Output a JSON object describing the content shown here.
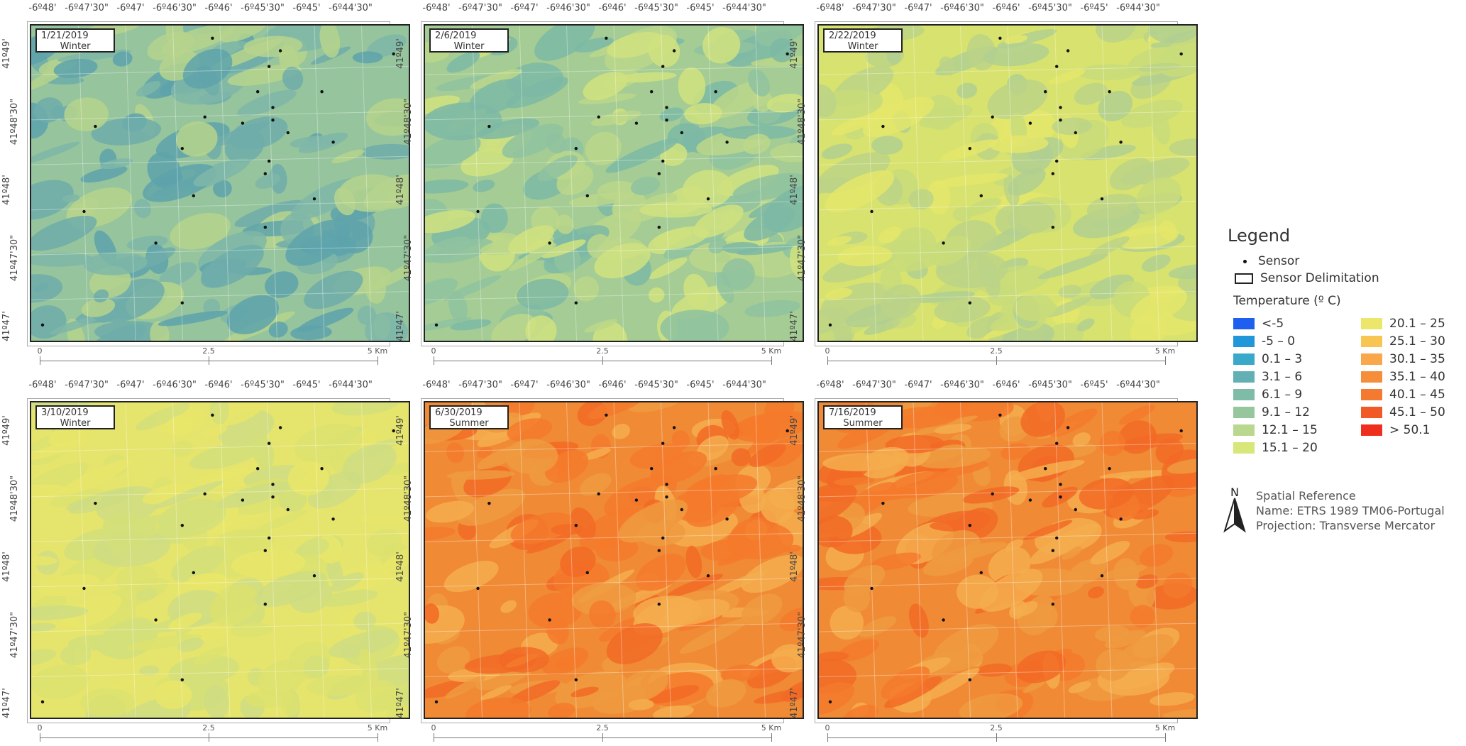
{
  "lon_labels": [
    "-6º48'",
    "-6º47'30\"",
    "-6º47'",
    "-6º46'30\"",
    "-6º46'",
    "-6º45'30\"",
    "-6º45'",
    "-6º44'30\""
  ],
  "lat_labels": [
    "41º49'",
    "41º48'30\"",
    "41º48'",
    "41º47'30\"",
    "41º47'"
  ],
  "scale_labels": [
    "0",
    "2.5",
    "5 Km"
  ],
  "panels": [
    {
      "date": "1/21/2019",
      "season": "Winter",
      "palette": "blueGreen"
    },
    {
      "date": "2/6/2019",
      "season": "Winter",
      "palette": "green"
    },
    {
      "date": "2/22/2019",
      "season": "Winter",
      "palette": "lime"
    },
    {
      "date": "3/10/2019",
      "season": "Winter",
      "palette": "yellow"
    },
    {
      "date": "6/30/2019",
      "season": "Summer",
      "palette": "orange"
    },
    {
      "date": "7/16/2019",
      "season": "Summer",
      "palette": "orange"
    }
  ],
  "palettes": {
    "blueGreen": [
      "#95c49d",
      "#7fb7a8",
      "#6fadaa",
      "#5ea3ab",
      "#b6d38c"
    ],
    "green": [
      "#a4cc94",
      "#8fc2a0",
      "#7db8a4",
      "#bcd789",
      "#d0e27f"
    ],
    "lime": [
      "#d8e26f",
      "#c9dc7a",
      "#bcd487",
      "#e4e66a",
      "#b0cf90"
    ],
    "yellow": [
      "#e5e46c",
      "#dde26f",
      "#d3df7a",
      "#e9e66a",
      "#cfdd82"
    ],
    "orange": [
      "#f08a35",
      "#f47a2c",
      "#ee9a40",
      "#f26a26",
      "#f5ad4e"
    ]
  },
  "legend": {
    "title": "Legend",
    "sensor_label": "Sensor",
    "delimitation_label": "Sensor Delimitation",
    "temperature_label": "Temperature (º C)",
    "classes_left": [
      {
        "label": "<-5",
        "color": "#1f5ff0"
      },
      {
        "label": "-5 – 0",
        "color": "#2196d8"
      },
      {
        "label": "0.1 – 3",
        "color": "#3aa9c9"
      },
      {
        "label": "3.1 – 6",
        "color": "#62b0b4"
      },
      {
        "label": "6.1 – 9",
        "color": "#7ebca8"
      },
      {
        "label": "9.1 – 12",
        "color": "#96c79c"
      },
      {
        "label": "12.1 – 15",
        "color": "#bad790"
      },
      {
        "label": "15.1 – 20",
        "color": "#d7e77a"
      }
    ],
    "classes_right": [
      {
        "label": "20.1 – 25",
        "color": "#ece76b"
      },
      {
        "label": "25.1 – 30",
        "color": "#f8c552"
      },
      {
        "label": "30.1 – 35",
        "color": "#f8a84a"
      },
      {
        "label": "35.1 – 40",
        "color": "#f58d3a"
      },
      {
        "label": "40.1 – 45",
        "color": "#f37a30"
      },
      {
        "label": "45.1 – 50",
        "color": "#f15a26"
      },
      {
        "label": "> 50.1",
        "color": "#ef2f1e"
      }
    ],
    "north_label": "N",
    "spatial_reference": {
      "heading": "Spatial Reference",
      "name": "Name:  ETRS 1989 TM06-Portugal",
      "projection": "Projection: Transverse Mercator"
    }
  }
}
